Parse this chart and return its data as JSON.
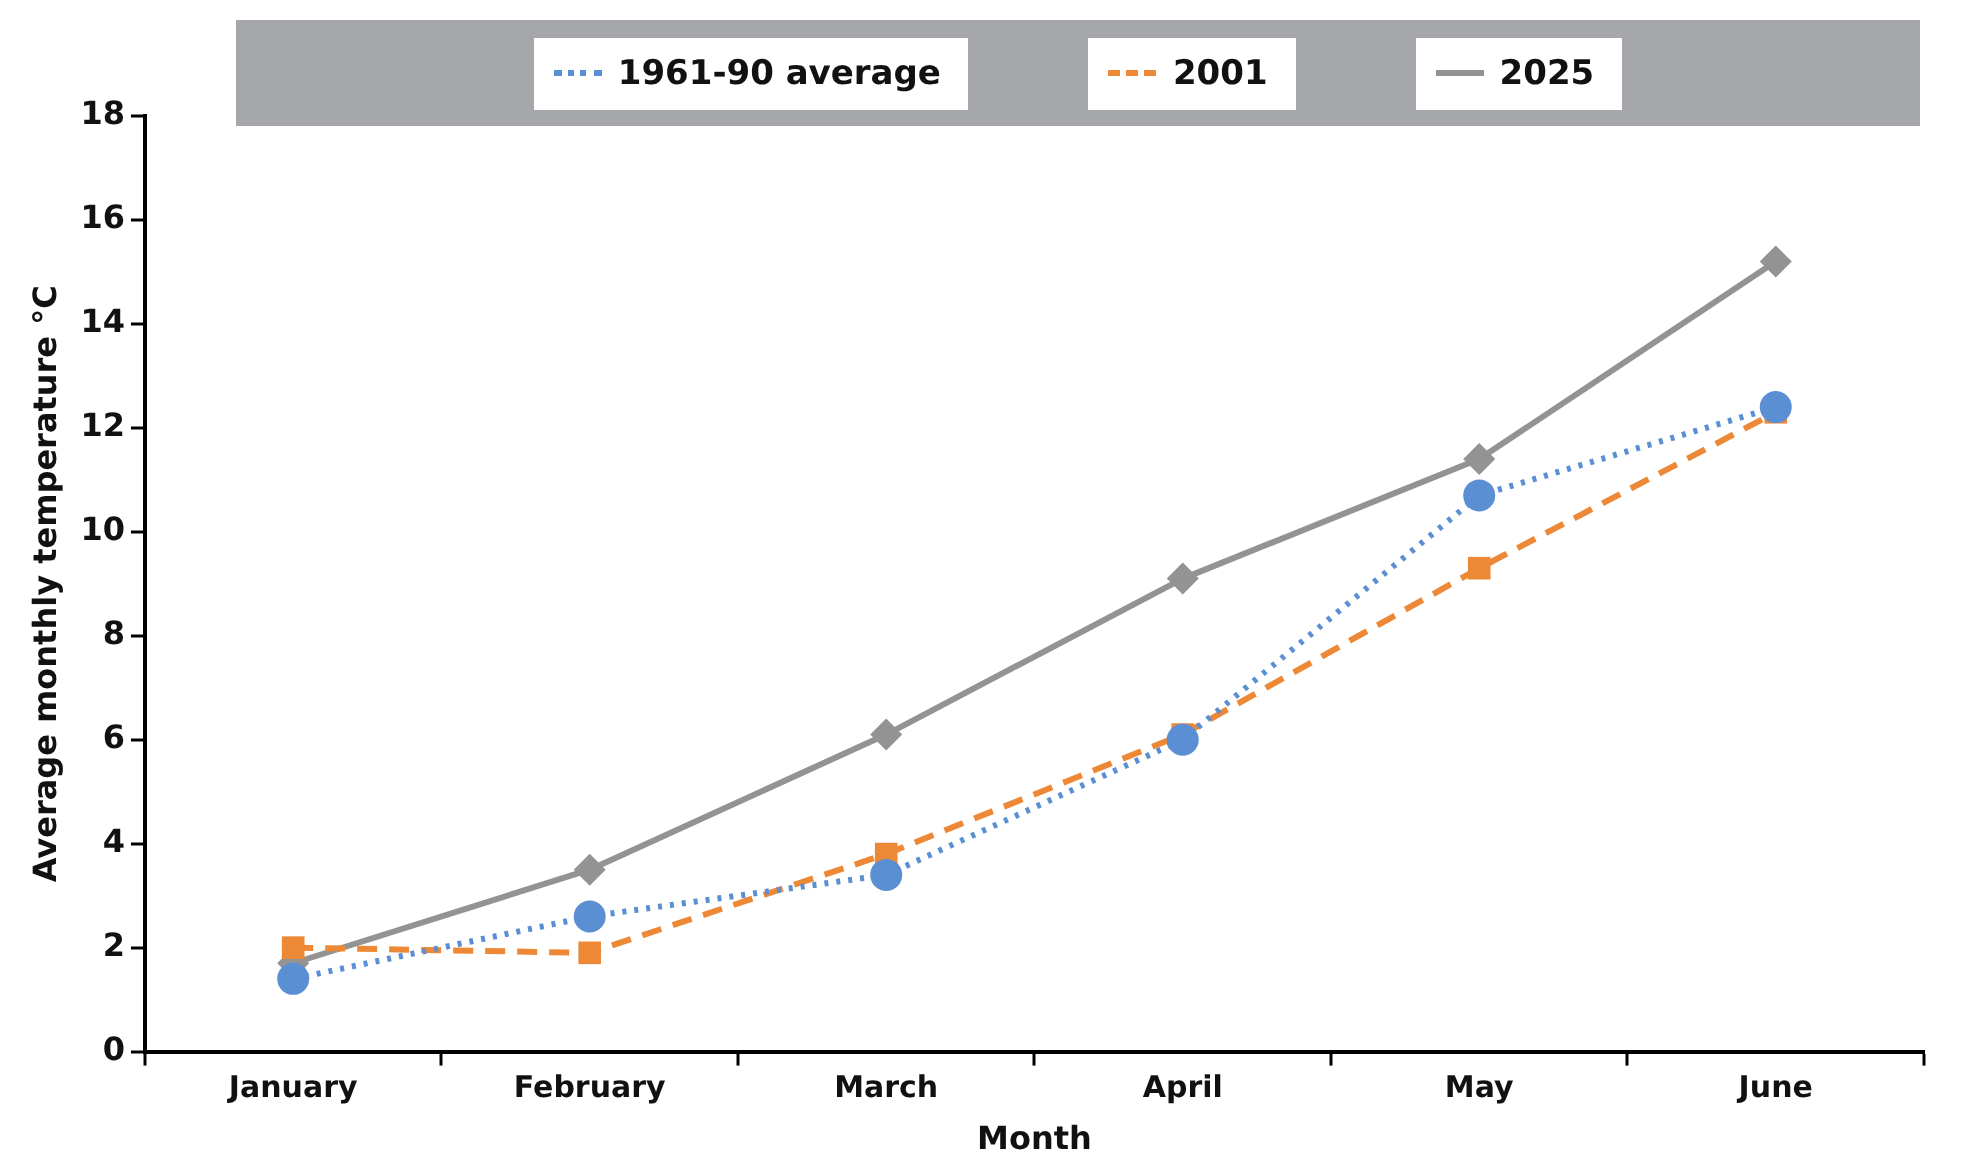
{
  "chart_data": {
    "type": "line",
    "xlabel": "Month",
    "ylabel": "Average monthly temperature °C",
    "categories": [
      "January",
      "February",
      "March",
      "April",
      "May",
      "June"
    ],
    "series": [
      {
        "name": "1961-90 average",
        "color": "#5b8fd4",
        "values": [
          1.4,
          2.6,
          3.4,
          6.0,
          10.7,
          12.4
        ],
        "marker": "circle",
        "line_style": "dotted"
      },
      {
        "name": "2001",
        "color": "#ed8936",
        "values": [
          2.0,
          1.9,
          3.8,
          6.1,
          9.3,
          12.3
        ],
        "marker": "square",
        "line_style": "dashed"
      },
      {
        "name": "2025",
        "color": "#939393",
        "values": [
          1.7,
          3.5,
          6.1,
          9.1,
          11.4,
          15.2
        ],
        "marker": "diamond",
        "line_style": "solid"
      }
    ],
    "ylim": [
      0,
      18
    ],
    "yticks": [
      0,
      2,
      4,
      6,
      8,
      10,
      12,
      14,
      16,
      18
    ],
    "grid": false,
    "legend": "top"
  }
}
